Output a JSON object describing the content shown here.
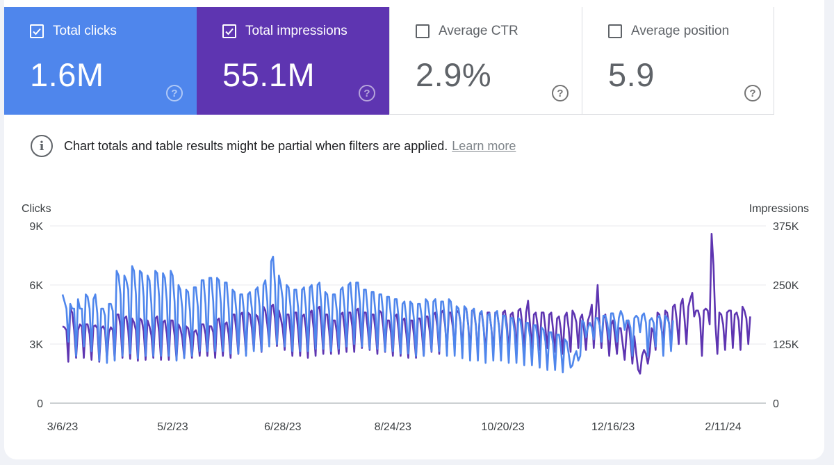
{
  "cards": [
    {
      "label": "Total clicks",
      "value": "1.6M",
      "checked": true
    },
    {
      "label": "Total impressions",
      "value": "55.1M",
      "checked": true
    },
    {
      "label": "Average CTR",
      "value": "2.9%",
      "checked": false
    },
    {
      "label": "Average position",
      "value": "5.9",
      "checked": false
    }
  ],
  "notice": {
    "text": "Chart totals and table results might be partial when filters are applied.",
    "link": "Learn more"
  },
  "colors": {
    "clicks": "#5e35b1",
    "impressions": "#4f86ec",
    "grid": "#e0e0e0"
  },
  "chart_data": {
    "type": "line",
    "ylabel_left": "Clicks",
    "ylabel_right": "Impressions",
    "left_ticks": [
      "0",
      "3K",
      "6K",
      "9K"
    ],
    "right_ticks": [
      "0",
      "125K",
      "250K",
      "375K"
    ],
    "ylim_left": [
      0,
      9000
    ],
    "ylim_right": [
      0,
      375000
    ],
    "x_tick_labels": [
      "3/6/23",
      "5/2/23",
      "6/28/23",
      "8/24/23",
      "10/20/23",
      "12/16/23",
      "2/11/24"
    ],
    "x_tick_days": [
      0,
      57,
      114,
      171,
      228,
      285,
      342
    ],
    "days": 359,
    "series": [
      {
        "name": "Clicks",
        "values": [
          3900,
          3850,
          3700,
          2100,
          4800,
          4600,
          3700,
          2300,
          3700,
          4000,
          3900,
          2300,
          4000,
          4000,
          3500,
          2200,
          3900,
          3950,
          3800,
          2100,
          3800,
          3900,
          3700,
          2200,
          3600,
          3850,
          3700,
          2200,
          4500,
          4500,
          3900,
          2300,
          4300,
          4400,
          3700,
          2250,
          4300,
          4100,
          3700,
          2150,
          4300,
          4200,
          3650,
          2200,
          4200,
          3900,
          3450,
          2300,
          4300,
          4400,
          3600,
          2200,
          4100,
          4200,
          3500,
          2200,
          4200,
          4200,
          3450,
          2200,
          4000,
          3800,
          3300,
          2300,
          3900,
          3800,
          3300,
          2300,
          3600,
          3700,
          3400,
          2400,
          4000,
          4000,
          3500,
          2400,
          3900,
          3900,
          3600,
          2300,
          4200,
          4300,
          3600,
          2400,
          4000,
          4100,
          3500,
          2300,
          4500,
          4500,
          3700,
          2500,
          4500,
          4600,
          3700,
          2500,
          4600,
          4500,
          3800,
          2700,
          4500,
          4400,
          3900,
          2600,
          4900,
          4700,
          4000,
          3000,
          4900,
          5000,
          4300,
          2900,
          4700,
          4300,
          3800,
          2700,
          4500,
          4500,
          3600,
          2400,
          4600,
          4600,
          3700,
          2400,
          4400,
          4500,
          3800,
          2300,
          4600,
          4700,
          3800,
          2400,
          4800,
          4900,
          4000,
          2500,
          4500,
          4500,
          3700,
          2500,
          4200,
          4200,
          3600,
          2500,
          4500,
          4600,
          3800,
          2600,
          4600,
          4600,
          3900,
          2600,
          4700,
          4800,
          4000,
          2800,
          4600,
          4600,
          3800,
          2700,
          4500,
          4500,
          3700,
          2500,
          4700,
          4600,
          3900,
          2600,
          4200,
          4200,
          3600,
          2400,
          4400,
          4500,
          3700,
          2400,
          4200,
          4300,
          3500,
          2300,
          4200,
          4200,
          3400,
          2300,
          4300,
          4300,
          3600,
          2400,
          4400,
          4400,
          3700,
          2600,
          4500,
          4600,
          3900,
          2500,
          4600,
          4700,
          4000,
          2700,
          4600,
          4600,
          3900,
          2800,
          4600,
          4700,
          4100,
          2700,
          4800,
          4800,
          4000,
          2600,
          4700,
          4700,
          3900,
          2500,
          4500,
          4600,
          3800,
          2500,
          4600,
          4600,
          3800,
          2600,
          4600,
          4600,
          3900,
          2600,
          4600,
          4700,
          4000,
          2600,
          4500,
          4600,
          4000,
          2700,
          4700,
          4800,
          4000,
          2700,
          4600,
          5200,
          4000,
          2800,
          4500,
          4600,
          3900,
          2700,
          4600,
          4600,
          3800,
          2800,
          4500,
          4600,
          3700,
          2600,
          4300,
          4400,
          3700,
          2500,
          4400,
          4600,
          3800,
          2600,
          4700,
          4500,
          4100,
          2800,
          4300,
          4500,
          3700,
          2700,
          4200,
          4500,
          5000,
          2800,
          4400,
          6000,
          4000,
          2800,
          4300,
          4500,
          3600,
          2400,
          4000,
          4200,
          3400,
          2500,
          3800,
          3800,
          3000,
          2200,
          3600,
          4200,
          3200,
          2000,
          3400,
          2500,
          1700,
          1500,
          2400,
          2700,
          2500,
          2000,
          2600,
          3800,
          3600,
          2700,
          4600,
          4500,
          3800,
          3200,
          4700,
          4600,
          4000,
          3000,
          4900,
          5000,
          4200,
          3000,
          5000,
          5300,
          4300,
          3000,
          4900,
          5300,
          5600,
          4400,
          4700,
          4700,
          4300,
          2400,
          4700,
          4800,
          4700,
          4000,
          8600,
          7000,
          4000,
          2500,
          4600,
          4500,
          4000,
          2700,
          4600,
          4700,
          4700,
          2800,
          4500,
          4600,
          4200,
          2700,
          4900,
          4700,
          4300,
          3000,
          4400
        ],
        "color": "#5e35b1"
      },
      {
        "name": "Impressions",
        "values": [
          230000,
          215000,
          200000,
          130000,
          210000,
          200000,
          200000,
          100000,
          220000,
          200000,
          200000,
          120000,
          230000,
          225000,
          200000,
          110000,
          220000,
          230000,
          190000,
          90000,
          200000,
          200000,
          185000,
          85000,
          210000,
          210000,
          195000,
          90000,
          280000,
          270000,
          230000,
          100000,
          270000,
          260000,
          240000,
          105000,
          290000,
          280000,
          230000,
          95000,
          280000,
          275000,
          225000,
          100000,
          270000,
          260000,
          210000,
          100000,
          280000,
          275000,
          225000,
          100000,
          275000,
          265000,
          215000,
          100000,
          280000,
          270000,
          215000,
          90000,
          250000,
          240000,
          200000,
          95000,
          240000,
          235000,
          195000,
          100000,
          245000,
          245000,
          205000,
          110000,
          260000,
          260000,
          210000,
          110000,
          265000,
          265000,
          215000,
          110000,
          265000,
          260000,
          210000,
          110000,
          255000,
          255000,
          200000,
          105000,
          240000,
          235000,
          195000,
          105000,
          230000,
          230000,
          190000,
          100000,
          230000,
          235000,
          200000,
          110000,
          240000,
          245000,
          205000,
          110000,
          250000,
          260000,
          215000,
          120000,
          300000,
          310000,
          250000,
          125000,
          270000,
          250000,
          220000,
          120000,
          250000,
          245000,
          205000,
          110000,
          240000,
          240000,
          200000,
          110000,
          240000,
          245000,
          200000,
          110000,
          245000,
          250000,
          205000,
          115000,
          250000,
          255000,
          205000,
          115000,
          235000,
          230000,
          195000,
          110000,
          230000,
          230000,
          195000,
          115000,
          240000,
          245000,
          200000,
          120000,
          250000,
          255000,
          205000,
          125000,
          255000,
          255000,
          210000,
          120000,
          240000,
          240000,
          195000,
          115000,
          235000,
          235000,
          190000,
          115000,
          230000,
          230000,
          190000,
          110000,
          225000,
          225000,
          185000,
          110000,
          220000,
          220000,
          180000,
          105000,
          210000,
          215000,
          180000,
          105000,
          215000,
          210000,
          175000,
          100000,
          210000,
          210000,
          180000,
          100000,
          220000,
          215000,
          185000,
          110000,
          215000,
          220000,
          180000,
          110000,
          215000,
          215000,
          175000,
          100000,
          220000,
          215000,
          180000,
          100000,
          205000,
          200000,
          170000,
          95000,
          205000,
          200000,
          165000,
          90000,
          195000,
          200000,
          165000,
          90000,
          190000,
          195000,
          160000,
          85000,
          185000,
          190000,
          160000,
          90000,
          190000,
          195000,
          160000,
          90000,
          185000,
          185000,
          155000,
          85000,
          180000,
          180000,
          150000,
          85000,
          180000,
          175000,
          145000,
          80000,
          170000,
          170000,
          140000,
          80000,
          165000,
          165000,
          135000,
          75000,
          160000,
          155000,
          130000,
          70000,
          150000,
          150000,
          125000,
          70000,
          145000,
          145000,
          115000,
          65000,
          135000,
          130000,
          105000,
          75000,
          80000,
          100000,
          110000,
          90000,
          100000,
          175000,
          170000,
          140000,
          160000,
          170000,
          160000,
          135000,
          180000,
          180000,
          165000,
          130000,
          185000,
          185000,
          170000,
          135000,
          190000,
          190000,
          170000,
          130000,
          180000,
          195000,
          185000,
          155000,
          175000,
          175000,
          160000,
          100000,
          180000,
          185000,
          180000,
          150000,
          185000,
          190000,
          170000,
          100000,
          175000,
          180000,
          170000,
          120000,
          180000,
          185000,
          170000,
          100000,
          185000,
          180000,
          170000,
          110000,
          175000
        ],
        "color": "#4f86ec"
      }
    ]
  }
}
